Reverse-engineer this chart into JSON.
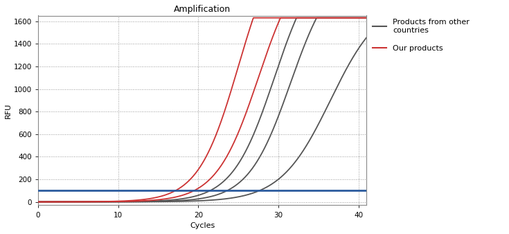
{
  "title": "Amplification",
  "xlabel": "Cycles",
  "ylabel": "RFU",
  "xlim": [
    0,
    41
  ],
  "ylim": [
    -30,
    1650
  ],
  "yticks": [
    0,
    200,
    400,
    600,
    800,
    1000,
    1200,
    1400,
    1600
  ],
  "xticks": [
    0,
    10,
    20,
    30,
    40
  ],
  "threshold_y": 100,
  "threshold_color": "#2b5b9e",
  "gray_color": "#555555",
  "red_color": "#cc3333",
  "background_color": "#ffffff",
  "legend_gray_label": "Products from other\ncountries",
  "legend_red_label": "Our products",
  "gray_curves": [
    {
      "L": 2200,
      "k": 0.38,
      "x0": 29.5
    },
    {
      "L": 2100,
      "k": 0.38,
      "x0": 31.5
    },
    {
      "L": 1800,
      "k": 0.32,
      "x0": 36.5
    }
  ],
  "red_curves": [
    {
      "L": 2400,
      "k": 0.4,
      "x0": 25.0
    },
    {
      "L": 2200,
      "k": 0.38,
      "x0": 27.5
    }
  ],
  "red_baseline": 12,
  "gray_baseline": 3,
  "figsize": [
    7.35,
    3.38
  ],
  "dpi": 100
}
